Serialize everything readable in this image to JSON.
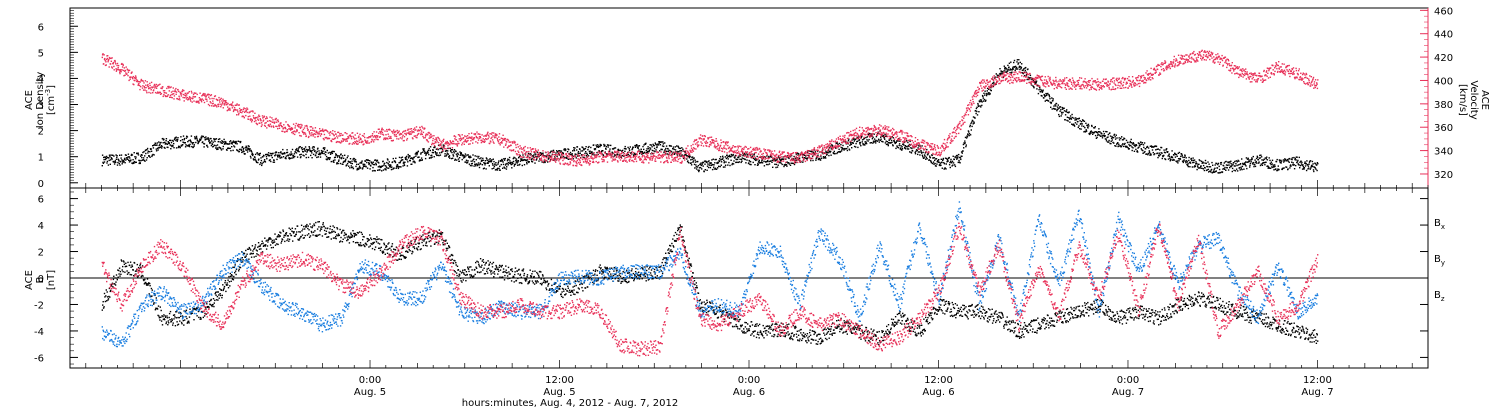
{
  "colors": {
    "black": "#000000",
    "red": "#e8325a",
    "blue": "#1a7ee0",
    "axis": "#000000"
  },
  "chart_data": [
    {
      "type": "scatter",
      "ylabel_lines": [
        "ACE",
        "Ion Density"
      ],
      "ylabel_unit_base": "[cm",
      "ylabel_unit_sup": "-3",
      "ylabel_unit_end": "]",
      "ylim": [
        -0.2,
        6.7
      ],
      "yticks": [
        "0",
        "1",
        "2",
        "3",
        "4",
        "5",
        "6"
      ],
      "y2label_lines": [
        "ACE",
        "Velocity"
      ],
      "y2label_unit": "[km/s]",
      "y2lim": [
        308,
        462
      ],
      "y2ticks": [
        "320",
        "340",
        "360",
        "380",
        "400",
        "420",
        "440",
        "460"
      ],
      "series": [
        {
          "key": "density",
          "axis": "left",
          "color": "black",
          "x": [
            0,
            1,
            2,
            3,
            4,
            5,
            6,
            7,
            8,
            9,
            10,
            11,
            12,
            13,
            14,
            15,
            16,
            17,
            18,
            19,
            20,
            21,
            22,
            23,
            24,
            25,
            26,
            27,
            28,
            29,
            30,
            31,
            32,
            33,
            34,
            35,
            36,
            37,
            38,
            39,
            40,
            41,
            42,
            43,
            44,
            45,
            46,
            47,
            48,
            49,
            50,
            51,
            52,
            53,
            54,
            55,
            56,
            57,
            58,
            59,
            60,
            61
          ],
          "y": [
            0.9,
            0.9,
            1.0,
            1.5,
            1.6,
            1.6,
            1.5,
            1.4,
            0.9,
            1.1,
            1.2,
            1.2,
            0.9,
            0.7,
            0.7,
            0.8,
            1.1,
            1.3,
            1.0,
            0.8,
            0.7,
            0.9,
            1.0,
            1.1,
            1.2,
            1.3,
            1.2,
            1.3,
            1.4,
            1.2,
            0.6,
            0.8,
            1.0,
            0.9,
            0.8,
            1.0,
            1.1,
            1.4,
            1.6,
            1.8,
            1.5,
            1.3,
            0.7,
            0.9,
            3.0,
            4.2,
            4.6,
            3.6,
            2.8,
            2.3,
            1.9,
            1.6,
            1.4,
            1.2,
            1.0,
            0.7,
            0.6,
            0.7,
            0.9,
            0.7,
            0.8,
            0.6
          ]
        },
        {
          "key": "velocity",
          "axis": "right",
          "color": "red",
          "x": [
            0,
            1,
            2,
            3,
            4,
            5,
            6,
            7,
            8,
            9,
            10,
            11,
            12,
            13,
            14,
            15,
            16,
            17,
            18,
            19,
            20,
            21,
            22,
            23,
            24,
            25,
            26,
            27,
            28,
            29,
            30,
            31,
            32,
            33,
            34,
            35,
            36,
            37,
            38,
            39,
            40,
            41,
            42,
            43,
            44,
            45,
            46,
            47,
            48,
            49,
            50,
            51,
            52,
            53,
            54,
            55,
            56,
            57,
            58,
            59,
            60,
            61
          ],
          "y": [
            420,
            410,
            396,
            392,
            388,
            385,
            382,
            374,
            366,
            362,
            358,
            354,
            352,
            350,
            355,
            353,
            357,
            345,
            350,
            352,
            350,
            340,
            336,
            334,
            332,
            335,
            336,
            335,
            335,
            334,
            350,
            345,
            340,
            338,
            335,
            334,
            340,
            348,
            356,
            358,
            354,
            346,
            340,
            360,
            395,
            402,
            404,
            400,
            398,
            398,
            397,
            398,
            400,
            410,
            418,
            422,
            420,
            408,
            402,
            412,
            406,
            396
          ]
        }
      ]
    },
    {
      "type": "scatter",
      "ylabel_lines": [
        "ACE",
        "B"
      ],
      "ylabel_unit": "[nT]",
      "ylim": [
        -6.8,
        6.8
      ],
      "yticks": [
        "-6",
        "-4",
        "-2",
        "0",
        "2",
        "4",
        "6"
      ],
      "legend": [
        {
          "label": "B",
          "sub": "x",
          "color": "black"
        },
        {
          "label": "B",
          "sub": "y",
          "color": "blue"
        },
        {
          "label": "B",
          "sub": "z",
          "color": "red"
        }
      ],
      "series": [
        {
          "key": "bx",
          "color": "black",
          "x": [
            0,
            1,
            2,
            3,
            4,
            5,
            6,
            7,
            8,
            9,
            10,
            11,
            12,
            13,
            14,
            15,
            16,
            17,
            18,
            19,
            20,
            21,
            22,
            23,
            24,
            25,
            26,
            27,
            28,
            29,
            30,
            31,
            32,
            33,
            34,
            35,
            36,
            37,
            38,
            39,
            40,
            41,
            42,
            43,
            44,
            45,
            46,
            47,
            48,
            49,
            50,
            51,
            52,
            53,
            54,
            55,
            56,
            57,
            58,
            59,
            60,
            61
          ],
          "y": [
            -2,
            1,
            0.5,
            -3,
            -3,
            -2.5,
            -1,
            1.5,
            2.5,
            3.2,
            3.5,
            3.8,
            3.2,
            3.0,
            2.5,
            1.8,
            2.8,
            3.2,
            0,
            1,
            0.5,
            0.2,
            0,
            -1,
            -0.5,
            0.5,
            0.2,
            0.3,
            0.5,
            4.0,
            -2.0,
            -2.5,
            -3.5,
            -4.0,
            -3.8,
            -4.2,
            -4.5,
            -3.5,
            -4.0,
            -4.5,
            -3.0,
            -4.0,
            -2.0,
            -2.5,
            -2.5,
            -3.0,
            -4.0,
            -3.5,
            -3.0,
            -2.5,
            -2.0,
            -3.0,
            -2.5,
            -3.0,
            -2.0,
            -1.5,
            -2.0,
            -2.5,
            -3.0,
            -3.5,
            -4.0,
            -4.5
          ]
        },
        {
          "key": "by",
          "color": "blue",
          "x": [
            0,
            1,
            2,
            3,
            4,
            5,
            6,
            7,
            8,
            9,
            10,
            11,
            12,
            13,
            14,
            15,
            16,
            17,
            18,
            19,
            20,
            21,
            22,
            23,
            24,
            25,
            26,
            27,
            28,
            29,
            30,
            31,
            32,
            33,
            34,
            35,
            36,
            37,
            38,
            39,
            40,
            41,
            42,
            43,
            44,
            45,
            46,
            47,
            48,
            49,
            50,
            51,
            52,
            53,
            54,
            55,
            56,
            57,
            58,
            59,
            60,
            61
          ],
          "y": [
            -4,
            -5,
            -2,
            -1,
            -2.5,
            -2,
            0.5,
            1.5,
            -0.5,
            -2,
            -2.5,
            -3.5,
            -3,
            1,
            0.5,
            -1.5,
            -1.5,
            1,
            -2.5,
            -3,
            -2.0,
            -2.5,
            -2.5,
            0,
            0.2,
            0,
            0.5,
            0.5,
            0.5,
            2.0,
            -2.5,
            -2.0,
            -2.5,
            2.5,
            2.0,
            -2.0,
            3.5,
            1.5,
            -3.0,
            2.5,
            -2.0,
            4.0,
            -1.5,
            5.5,
            -2.0,
            3.0,
            -3.0,
            4.5,
            -0.5,
            5.0,
            -2.5,
            4.5,
            0.5,
            4.0,
            -0.5,
            2.5,
            3.0,
            -1.0,
            -3.0,
            1.0,
            -2.5,
            -1.5
          ]
        },
        {
          "key": "bz",
          "color": "red",
          "x": [
            0,
            1,
            2,
            3,
            4,
            5,
            6,
            7,
            8,
            9,
            10,
            11,
            12,
            13,
            14,
            15,
            16,
            17,
            18,
            19,
            20,
            21,
            22,
            23,
            24,
            25,
            26,
            27,
            28,
            29,
            30,
            31,
            32,
            33,
            34,
            35,
            36,
            37,
            38,
            39,
            40,
            41,
            42,
            43,
            44,
            45,
            46,
            47,
            48,
            49,
            50,
            51,
            52,
            53,
            54,
            55,
            56,
            57,
            58,
            59,
            60,
            61
          ],
          "y": [
            1,
            -2,
            1,
            2.5,
            1,
            -2,
            -3.5,
            -0.5,
            1.5,
            1,
            1.5,
            1.0,
            -0.5,
            -1.0,
            0.5,
            2.5,
            3.5,
            3.0,
            -1.5,
            -2.5,
            -2.5,
            -2.0,
            -2.5,
            -2.5,
            -2.0,
            -2.5,
            -5.0,
            -5.3,
            -5.2,
            3.5,
            -3.0,
            -3.5,
            -2.5,
            -1.5,
            -4.0,
            -2.5,
            -3.5,
            -3.0,
            -4.0,
            -5.0,
            -4.5,
            -3.0,
            -1.0,
            4.0,
            -1.0,
            2.5,
            -3.5,
            1.0,
            -3.0,
            2.5,
            -1.5,
            3.5,
            -2.5,
            4.0,
            -2.0,
            3.0,
            -4.0,
            -2.0,
            0.5,
            -3.0,
            -2.0,
            1.5
          ]
        }
      ]
    }
  ],
  "x_axis": {
    "title": "hours:minutes, Aug.  4, 2012 - Aug.  7, 2012",
    "ticks": [
      {
        "time": "0:00",
        "date": "Aug. 5",
        "hours": 19
      },
      {
        "time": "12:00",
        "date": "Aug. 5",
        "hours": 31
      },
      {
        "time": "0:00",
        "date": "Aug. 6",
        "hours": 43
      },
      {
        "time": "12:00",
        "date": "Aug. 6",
        "hours": 55
      },
      {
        "time": "0:00",
        "date": "Aug. 7",
        "hours": 67
      },
      {
        "time": "12:00",
        "date": "Aug. 7",
        "hours": 79
      }
    ],
    "range_hours": [
      0,
      86
    ]
  }
}
